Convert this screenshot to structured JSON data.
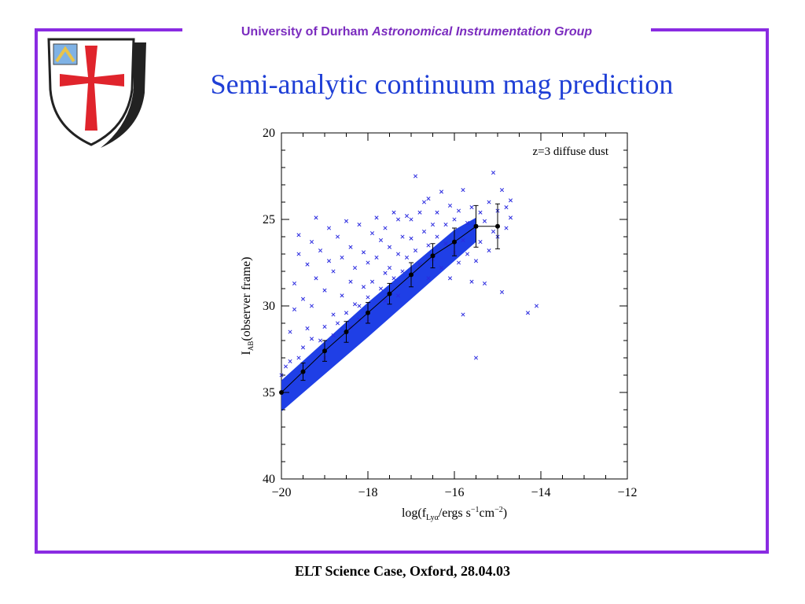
{
  "header": {
    "prefix": "University of Durham",
    "group": "Astronomical Instrumentation Group"
  },
  "slide": {
    "title": "Semi-analytic continuum mag prediction",
    "footer": "ELT Science Case, Oxford, 28.04.03"
  },
  "colors": {
    "frame": "#8a2be2",
    "header_text": "#7b2cbf",
    "title_text": "#1f3fd6",
    "points": "#2a2ae0",
    "band": "#1f3fe6"
  },
  "chart_data": {
    "type": "scatter",
    "annotation": "z=3 diffuse dust",
    "xlabel": "log(f",
    "xlabel_sub": "Lyα",
    "xlabel_rest": "/ergs s",
    "xlabel_sup1": "−1",
    "xlabel_cm": "cm",
    "xlabel_sup2": "−2",
    "xlabel_end": ")",
    "ylabel_main": "I",
    "ylabel_sub": "AB",
    "ylabel_rest": "(observer frame)",
    "xlim": [
      -20,
      -12
    ],
    "ylim": [
      40,
      20
    ],
    "x_ticks": [
      -20,
      -18,
      -16,
      -14,
      -12
    ],
    "x_tick_labels": [
      "−20",
      "−18",
      "−16",
      "−14",
      "−12"
    ],
    "y_ticks": [
      20,
      25,
      30,
      35,
      40
    ],
    "y_tick_labels": [
      "20",
      "25",
      "30",
      "35",
      "40"
    ],
    "band": {
      "lower": [
        [
          -20,
          36.1
        ],
        [
          -18,
          31.8
        ],
        [
          -16,
          27.4
        ],
        [
          -15.5,
          26.3
        ]
      ],
      "upper": [
        [
          -20,
          34.3
        ],
        [
          -18,
          29.8
        ],
        [
          -16,
          25.6
        ],
        [
          -15.5,
          24.9
        ]
      ]
    },
    "binned_means": [
      {
        "x": -20.0,
        "y": 35.0,
        "err": 0.0
      },
      {
        "x": -19.5,
        "y": 33.8,
        "err": 0.5
      },
      {
        "x": -19.0,
        "y": 32.6,
        "err": 0.6
      },
      {
        "x": -18.5,
        "y": 31.5,
        "err": 0.6
      },
      {
        "x": -18.0,
        "y": 30.4,
        "err": 0.6
      },
      {
        "x": -17.5,
        "y": 29.3,
        "err": 0.6
      },
      {
        "x": -17.0,
        "y": 28.2,
        "err": 0.7
      },
      {
        "x": -16.5,
        "y": 27.1,
        "err": 0.7
      },
      {
        "x": -16.0,
        "y": 26.3,
        "err": 0.8
      },
      {
        "x": -15.5,
        "y": 25.4,
        "err": 1.2
      },
      {
        "x": -15.0,
        "y": 25.4,
        "err": 1.3
      }
    ],
    "scatter_points": [
      [
        -20.0,
        34.0
      ],
      [
        -19.9,
        33.5
      ],
      [
        -19.8,
        33.2
      ],
      [
        -19.8,
        31.5
      ],
      [
        -19.7,
        30.2
      ],
      [
        -19.7,
        28.7
      ],
      [
        -19.6,
        27.0
      ],
      [
        -19.6,
        25.9
      ],
      [
        -19.5,
        32.4
      ],
      [
        -19.5,
        29.6
      ],
      [
        -19.4,
        31.3
      ],
      [
        -19.4,
        27.6
      ],
      [
        -19.3,
        26.3
      ],
      [
        -19.3,
        30.0
      ],
      [
        -19.2,
        28.4
      ],
      [
        -19.2,
        24.9
      ],
      [
        -19.1,
        32.0
      ],
      [
        -19.1,
        26.8
      ],
      [
        -19.0,
        29.1
      ],
      [
        -19.0,
        31.2
      ],
      [
        -18.9,
        27.4
      ],
      [
        -18.9,
        25.5
      ],
      [
        -18.8,
        30.5
      ],
      [
        -18.8,
        28.0
      ],
      [
        -18.7,
        26.0
      ],
      [
        -18.7,
        31.0
      ],
      [
        -18.6,
        29.4
      ],
      [
        -18.6,
        27.2
      ],
      [
        -18.5,
        30.4
      ],
      [
        -18.5,
        25.1
      ],
      [
        -18.4,
        28.6
      ],
      [
        -18.4,
        26.6
      ],
      [
        -18.3,
        29.9
      ],
      [
        -18.3,
        27.8
      ],
      [
        -18.2,
        25.3
      ],
      [
        -18.2,
        30.0
      ],
      [
        -18.1,
        28.9
      ],
      [
        -18.1,
        26.9
      ],
      [
        -18.0,
        29.5
      ],
      [
        -18.0,
        27.5
      ],
      [
        -17.9,
        25.8
      ],
      [
        -17.9,
        28.6
      ],
      [
        -17.8,
        24.9
      ],
      [
        -17.8,
        27.2
      ],
      [
        -17.7,
        29.0
      ],
      [
        -17.7,
        26.2
      ],
      [
        -17.6,
        28.1
      ],
      [
        -17.6,
        25.5
      ],
      [
        -17.5,
        27.8
      ],
      [
        -17.5,
        26.6
      ],
      [
        -17.4,
        24.6
      ],
      [
        -17.4,
        28.4
      ],
      [
        -17.3,
        27.0
      ],
      [
        -17.3,
        25.0
      ],
      [
        -17.2,
        26.0
      ],
      [
        -17.2,
        28.0
      ],
      [
        -17.1,
        24.8
      ],
      [
        -17.1,
        27.2
      ],
      [
        -17.0,
        26.1
      ],
      [
        -17.0,
        25.0
      ],
      [
        -16.9,
        22.5
      ],
      [
        -16.9,
        26.8
      ],
      [
        -16.8,
        24.6
      ],
      [
        -16.8,
        27.6
      ],
      [
        -16.7,
        25.7
      ],
      [
        -16.7,
        24.0
      ],
      [
        -16.6,
        26.5
      ],
      [
        -16.6,
        23.8
      ],
      [
        -16.5,
        25.3
      ],
      [
        -16.5,
        27.3
      ],
      [
        -16.4,
        24.6
      ],
      [
        -16.4,
        26.0
      ],
      [
        -16.3,
        23.4
      ],
      [
        -16.3,
        27.8
      ],
      [
        -16.2,
        25.3
      ],
      [
        -16.2,
        26.4
      ],
      [
        -16.1,
        24.2
      ],
      [
        -16.1,
        28.4
      ],
      [
        -16.0,
        25.0
      ],
      [
        -16.0,
        26.9
      ],
      [
        -15.9,
        24.5
      ],
      [
        -15.9,
        27.5
      ],
      [
        -15.8,
        23.3
      ],
      [
        -15.8,
        26.2
      ],
      [
        -15.7,
        25.2
      ],
      [
        -15.7,
        27.0
      ],
      [
        -15.6,
        24.3
      ],
      [
        -15.6,
        28.6
      ],
      [
        -15.5,
        25.4
      ],
      [
        -15.5,
        27.4
      ],
      [
        -15.4,
        24.6
      ],
      [
        -15.4,
        26.3
      ],
      [
        -15.3,
        25.1
      ],
      [
        -15.3,
        28.7
      ],
      [
        -15.2,
        24.0
      ],
      [
        -15.2,
        26.8
      ],
      [
        -15.1,
        22.3
      ],
      [
        -15.1,
        25.7
      ],
      [
        -15.0,
        24.5
      ],
      [
        -15.0,
        26.0
      ],
      [
        -14.9,
        29.2
      ],
      [
        -14.9,
        23.3
      ],
      [
        -14.8,
        24.3
      ],
      [
        -14.8,
        25.5
      ],
      [
        -14.7,
        24.9
      ],
      [
        -14.7,
        23.9
      ],
      [
        -14.3,
        30.4
      ],
      [
        -14.1,
        30.0
      ],
      [
        -15.8,
        30.5
      ],
      [
        -15.5,
        33.0
      ],
      [
        -18.2,
        30.8
      ],
      [
        -19.6,
        33.0
      ],
      [
        -19.3,
        31.9
      ],
      [
        -18.8,
        31.7
      ],
      [
        -18.0,
        30.9
      ],
      [
        -17.3,
        29.4
      ],
      [
        -16.6,
        28.4
      ],
      [
        -17.6,
        29.7
      ],
      [
        -18.4,
        31.2
      ],
      [
        -19.0,
        33.0
      ]
    ]
  }
}
